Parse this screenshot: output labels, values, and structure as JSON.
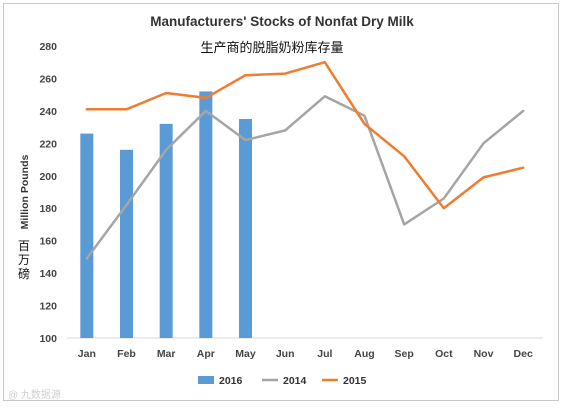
{
  "chart_data": {
    "type": "bar+line",
    "title": "Manufacturers' Stocks of Nonfat Dry Milk",
    "subtitle": "生产商的脱脂奶粉库存量",
    "ylabel": "Million Pounds",
    "ylabel_cn": "百万磅",
    "categories": [
      "Jan",
      "Feb",
      "Mar",
      "Apr",
      "May",
      "Jun",
      "Jul",
      "Aug",
      "Sep",
      "Oct",
      "Nov",
      "Dec"
    ],
    "ylim": [
      100,
      280
    ],
    "yticks": [
      "100",
      "120",
      "140",
      "160",
      "180",
      "200",
      "220",
      "240",
      "260",
      "280"
    ],
    "grid": false,
    "legend_position": "bottom",
    "series": [
      {
        "name": "2016",
        "kind": "bar",
        "color": "#5b9bd5",
        "values": [
          226,
          216,
          232,
          252,
          235,
          null,
          null,
          null,
          null,
          null,
          null,
          null
        ]
      },
      {
        "name": "2014",
        "kind": "line",
        "color": "#a5a5a5",
        "values": [
          149,
          182,
          216,
          240,
          222,
          228,
          249,
          237,
          170,
          186,
          220,
          240
        ]
      },
      {
        "name": "2015",
        "kind": "line",
        "color": "#ed7d31",
        "values": [
          241,
          241,
          251,
          248,
          262,
          263,
          270,
          232,
          212,
          180,
          199,
          205
        ]
      }
    ],
    "watermark": "@ 九数据源"
  }
}
